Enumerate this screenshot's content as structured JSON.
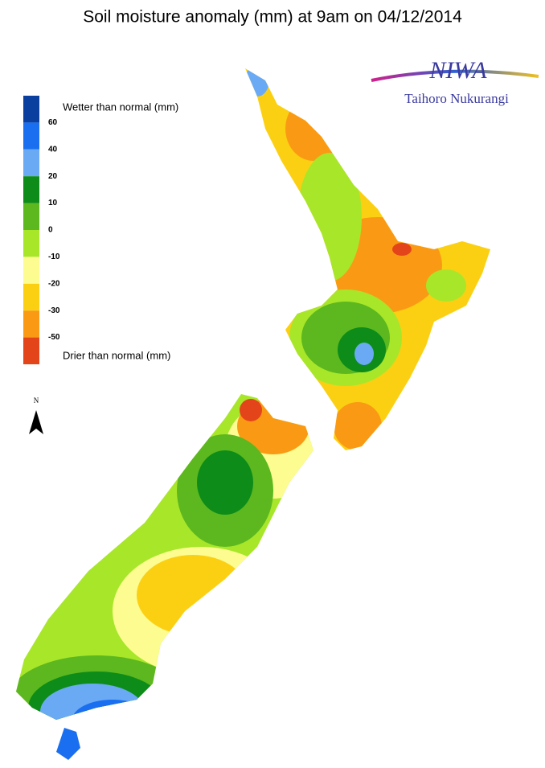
{
  "title": "Soil moisture anomaly (mm) at 9am on 04/12/2014",
  "logo": {
    "name": "NIWA",
    "subtitle": "Taihoro Nukurangi"
  },
  "north_label": "N",
  "legend": {
    "wetter_label": "Wetter than normal (mm)",
    "drier_label": "Drier than normal (mm)",
    "colors": [
      "#0a3fa0",
      "#1a6ff0",
      "#6aaaf5",
      "#0d8c1a",
      "#5cb81e",
      "#a8e62a",
      "#fcfc90",
      "#fcd012",
      "#fa9a14",
      "#e4441a"
    ],
    "breaks": [
      60,
      40,
      20,
      10,
      0,
      -10,
      -20,
      -30,
      -50
    ]
  }
}
